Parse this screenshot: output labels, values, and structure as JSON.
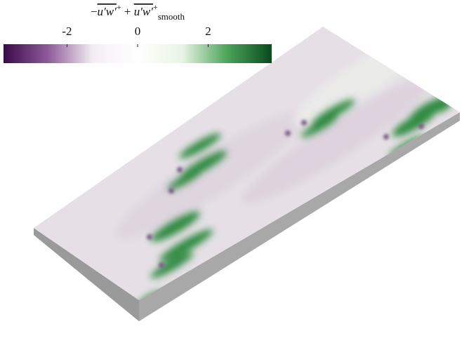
{
  "chart_data": {
    "type": "colorbar",
    "title": [
      "−",
      "u′w′",
      "+",
      " + ",
      "u′w′",
      "+",
      "smooth"
    ],
    "colors": [
      "#3b0a4a",
      "#8e5a9a",
      "#f4eef4",
      "#ffffff",
      "#e8f4e4",
      "#4ca45a",
      "#0a4a1e"
    ],
    "clim": [
      -3.8,
      3.8
    ],
    "cticks": [
      -2,
      0,
      2
    ]
  }
}
